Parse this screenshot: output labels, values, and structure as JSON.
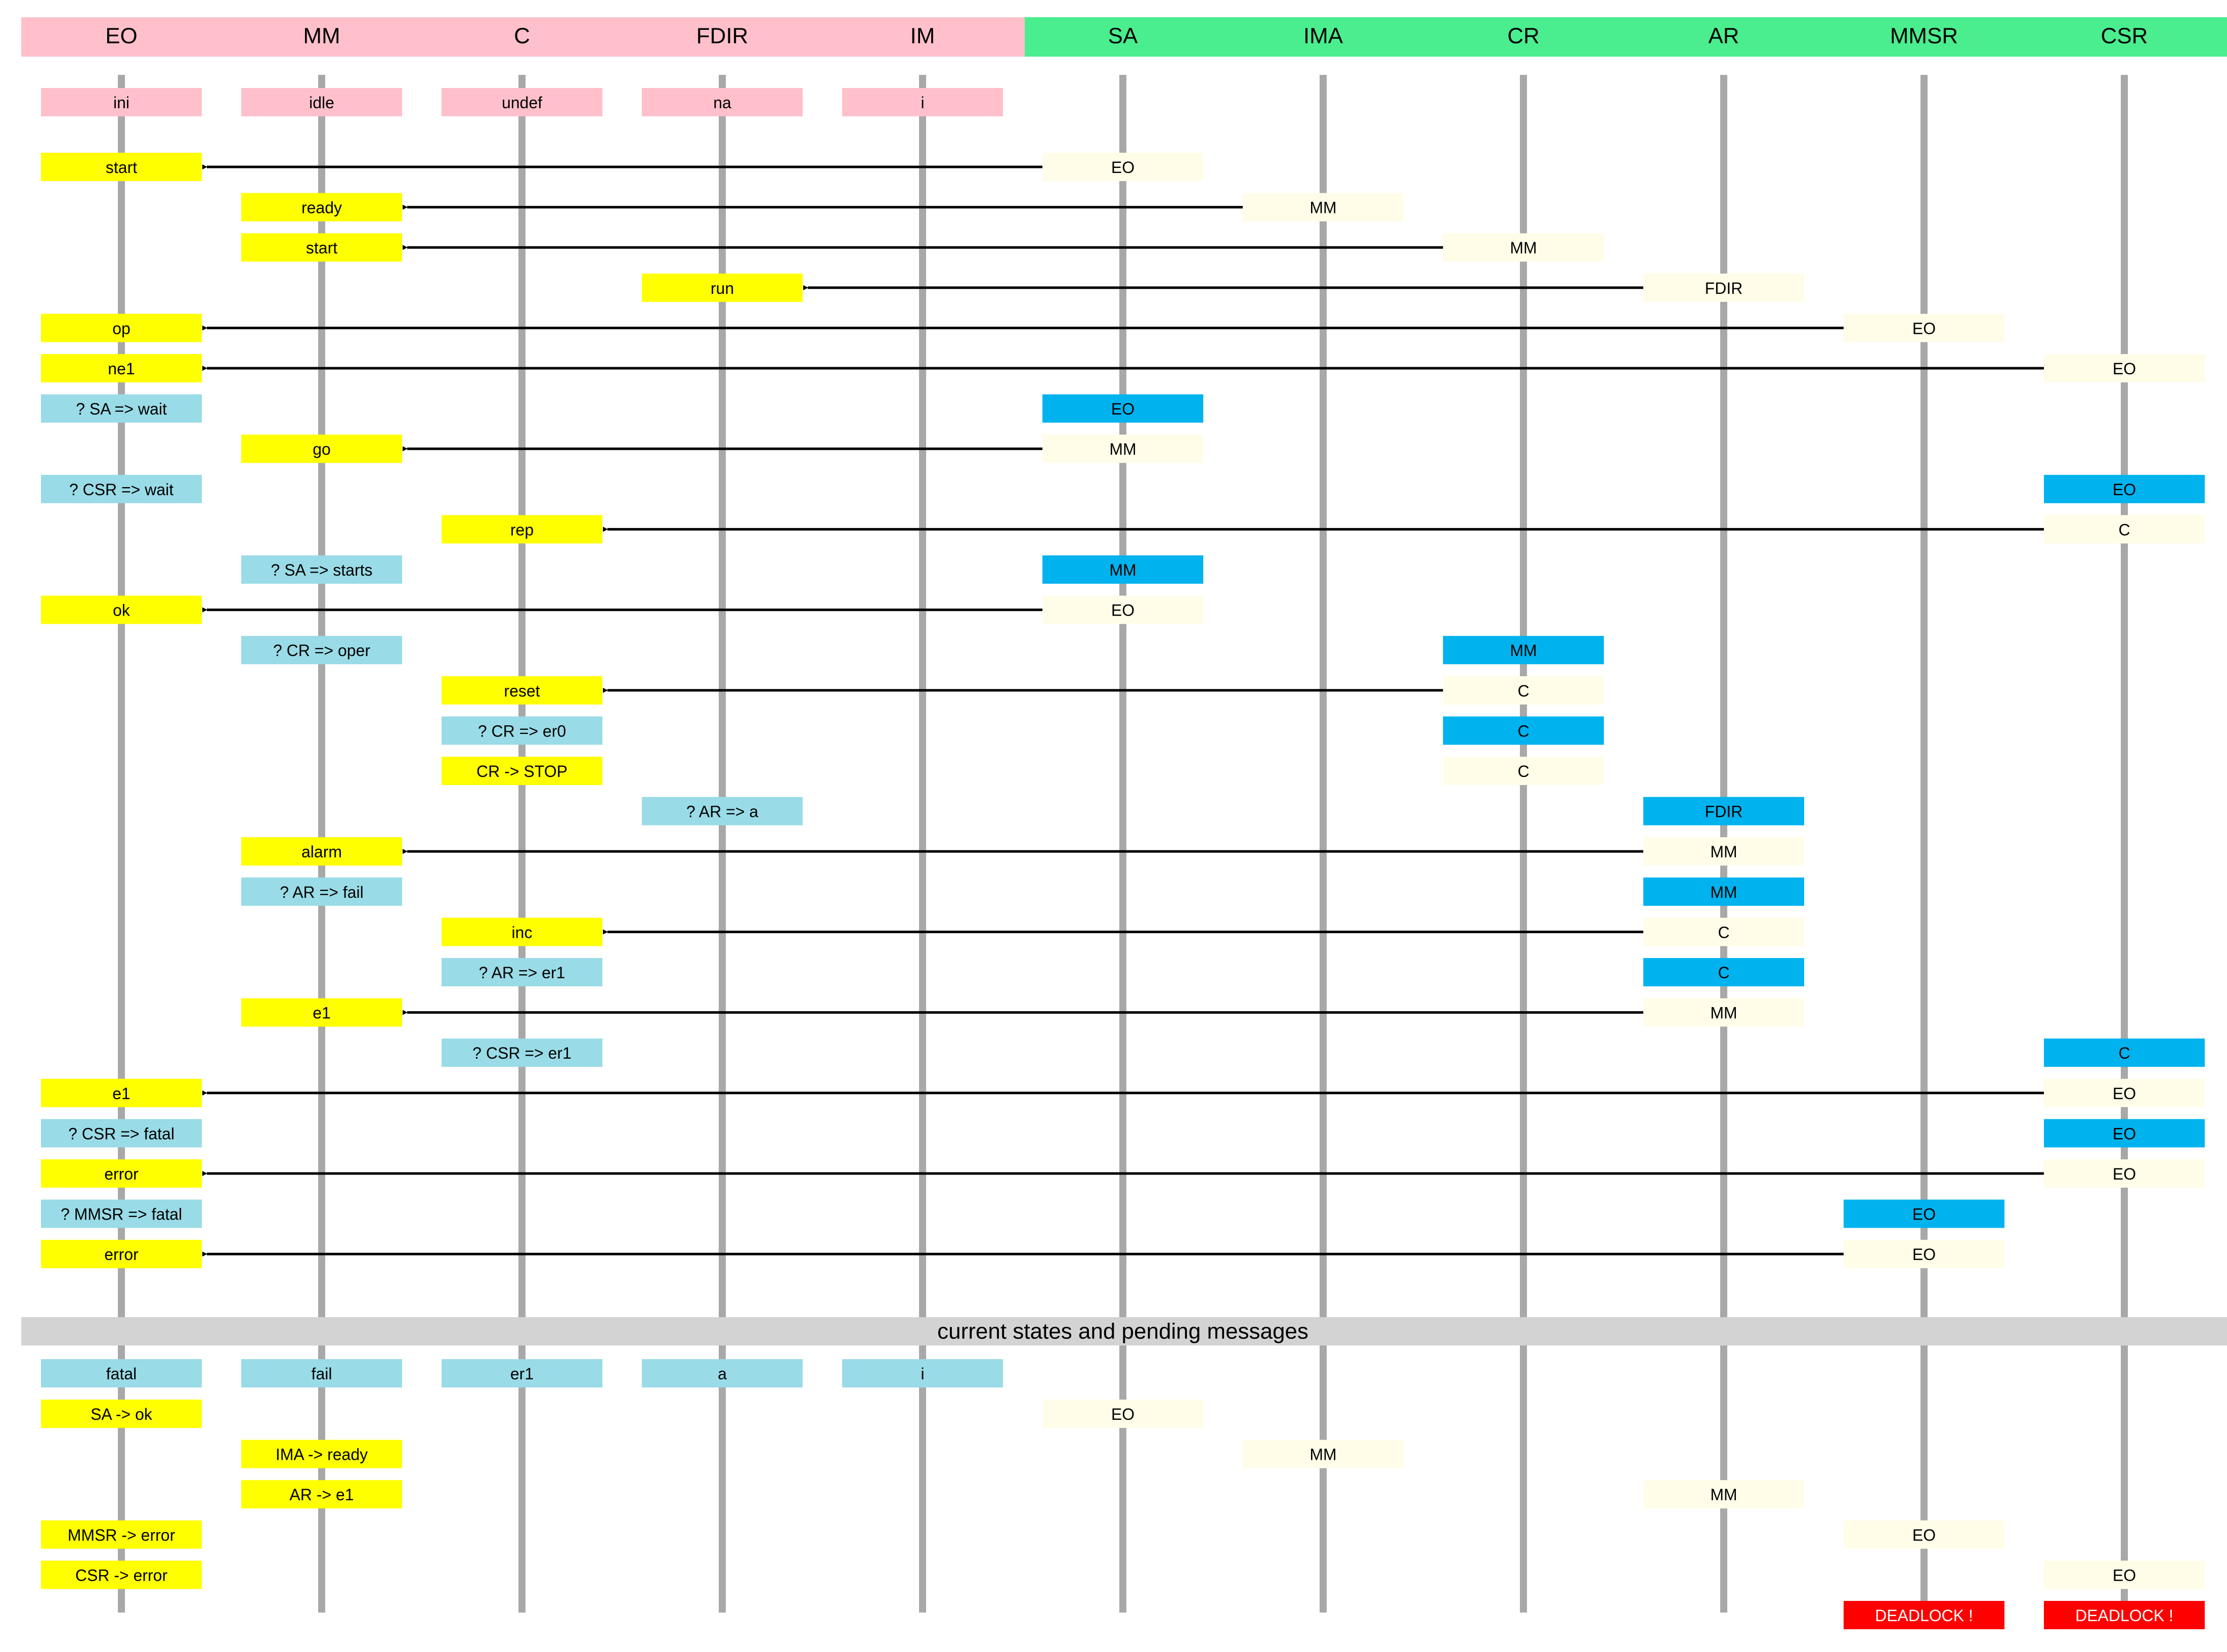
{
  "columns": [
    "EO",
    "MM",
    "C",
    "FDIR",
    "IM",
    "SA",
    "IMA",
    "CR",
    "AR",
    "MMSR",
    "CSR"
  ],
  "colors": {
    "header_left": "#ffc0cb",
    "header_right": "#4aee8e",
    "lifeline": "#a8a8a8",
    "initial_state": "#ffc0cb",
    "action": "#ffff00",
    "query": "#99dbe6",
    "sender_active": "#00b3ee",
    "sender_pending": "#fffde8",
    "deadlock": "#ff0000",
    "separator": "#d3d3d3",
    "arrow": "#000000"
  },
  "initial_states": [
    {
      "col": 0,
      "text": "ini"
    },
    {
      "col": 1,
      "text": "idle"
    },
    {
      "col": 2,
      "text": "undef"
    },
    {
      "col": 3,
      "text": "na"
    },
    {
      "col": 4,
      "text": "i"
    }
  ],
  "steps": [
    {
      "left": {
        "col": 0,
        "text": "start",
        "kind": "action"
      },
      "right": {
        "col": 5,
        "text": "EO",
        "kind": "sender_pending"
      },
      "arrow": true
    },
    {
      "left": {
        "col": 1,
        "text": "ready",
        "kind": "action"
      },
      "right": {
        "col": 6,
        "text": "MM",
        "kind": "sender_pending"
      },
      "arrow": true
    },
    {
      "left": {
        "col": 1,
        "text": "start",
        "kind": "action"
      },
      "right": {
        "col": 7,
        "text": "MM",
        "kind": "sender_pending"
      },
      "arrow": true
    },
    {
      "left": {
        "col": 3,
        "text": "run",
        "kind": "action"
      },
      "right": {
        "col": 8,
        "text": "FDIR",
        "kind": "sender_pending"
      },
      "arrow": true
    },
    {
      "left": {
        "col": 0,
        "text": "op",
        "kind": "action"
      },
      "right": {
        "col": 9,
        "text": "EO",
        "kind": "sender_pending"
      },
      "arrow": true
    },
    {
      "left": {
        "col": 0,
        "text": "ne1",
        "kind": "action"
      },
      "right": {
        "col": 10,
        "text": "EO",
        "kind": "sender_pending"
      },
      "arrow": true
    },
    {
      "left": {
        "col": 0,
        "text": "? SA => wait",
        "kind": "query"
      },
      "right": {
        "col": 5,
        "text": "EO",
        "kind": "sender_active"
      },
      "arrow": false
    },
    {
      "left": {
        "col": 1,
        "text": "go",
        "kind": "action"
      },
      "right": {
        "col": 5,
        "text": "MM",
        "kind": "sender_pending"
      },
      "arrow": true
    },
    {
      "left": {
        "col": 0,
        "text": "? CSR => wait",
        "kind": "query"
      },
      "right": {
        "col": 10,
        "text": "EO",
        "kind": "sender_active"
      },
      "arrow": false
    },
    {
      "left": {
        "col": 2,
        "text": "rep",
        "kind": "action"
      },
      "right": {
        "col": 10,
        "text": "C",
        "kind": "sender_pending"
      },
      "arrow": true
    },
    {
      "left": {
        "col": 1,
        "text": "? SA => starts",
        "kind": "query"
      },
      "right": {
        "col": 5,
        "text": "MM",
        "kind": "sender_active"
      },
      "arrow": false
    },
    {
      "left": {
        "col": 0,
        "text": "ok",
        "kind": "action"
      },
      "right": {
        "col": 5,
        "text": "EO",
        "kind": "sender_pending"
      },
      "arrow": true
    },
    {
      "left": {
        "col": 1,
        "text": "? CR => oper",
        "kind": "query"
      },
      "right": {
        "col": 7,
        "text": "MM",
        "kind": "sender_active"
      },
      "arrow": false
    },
    {
      "left": {
        "col": 2,
        "text": "reset",
        "kind": "action"
      },
      "right": {
        "col": 7,
        "text": "C",
        "kind": "sender_pending"
      },
      "arrow": true
    },
    {
      "left": {
        "col": 2,
        "text": "? CR => er0",
        "kind": "query"
      },
      "right": {
        "col": 7,
        "text": "C",
        "kind": "sender_active"
      },
      "arrow": false
    },
    {
      "left": {
        "col": 2,
        "text": "CR -> STOP",
        "kind": "action"
      },
      "right": {
        "col": 7,
        "text": "C",
        "kind": "sender_pending"
      },
      "arrow": false
    },
    {
      "left": {
        "col": 3,
        "text": "? AR => a",
        "kind": "query"
      },
      "right": {
        "col": 8,
        "text": "FDIR",
        "kind": "sender_active"
      },
      "arrow": false
    },
    {
      "left": {
        "col": 1,
        "text": "alarm",
        "kind": "action"
      },
      "right": {
        "col": 8,
        "text": "MM",
        "kind": "sender_pending"
      },
      "arrow": true
    },
    {
      "left": {
        "col": 1,
        "text": "? AR => fail",
        "kind": "query"
      },
      "right": {
        "col": 8,
        "text": "MM",
        "kind": "sender_active"
      },
      "arrow": false
    },
    {
      "left": {
        "col": 2,
        "text": "inc",
        "kind": "action"
      },
      "right": {
        "col": 8,
        "text": "C",
        "kind": "sender_pending"
      },
      "arrow": true
    },
    {
      "left": {
        "col": 2,
        "text": "? AR => er1",
        "kind": "query"
      },
      "right": {
        "col": 8,
        "text": "C",
        "kind": "sender_active"
      },
      "arrow": false
    },
    {
      "left": {
        "col": 1,
        "text": "e1",
        "kind": "action"
      },
      "right": {
        "col": 8,
        "text": "MM",
        "kind": "sender_pending"
      },
      "arrow": true
    },
    {
      "left": {
        "col": 2,
        "text": "? CSR => er1",
        "kind": "query"
      },
      "right": {
        "col": 10,
        "text": "C",
        "kind": "sender_active"
      },
      "arrow": false
    },
    {
      "left": {
        "col": 0,
        "text": "e1",
        "kind": "action"
      },
      "right": {
        "col": 10,
        "text": "EO",
        "kind": "sender_pending"
      },
      "arrow": true
    },
    {
      "left": {
        "col": 0,
        "text": "? CSR => fatal",
        "kind": "query"
      },
      "right": {
        "col": 10,
        "text": "EO",
        "kind": "sender_active"
      },
      "arrow": false
    },
    {
      "left": {
        "col": 0,
        "text": "error",
        "kind": "action"
      },
      "right": {
        "col": 10,
        "text": "EO",
        "kind": "sender_pending"
      },
      "arrow": true
    },
    {
      "left": {
        "col": 0,
        "text": "? MMSR => fatal",
        "kind": "query"
      },
      "right": {
        "col": 9,
        "text": "EO",
        "kind": "sender_active"
      },
      "arrow": false
    },
    {
      "left": {
        "col": 0,
        "text": "error",
        "kind": "action"
      },
      "right": {
        "col": 9,
        "text": "EO",
        "kind": "sender_pending"
      },
      "arrow": true
    }
  ],
  "separator_label": "current states and pending messages",
  "current_states": [
    {
      "col": 0,
      "text": "fatal"
    },
    {
      "col": 1,
      "text": "fail"
    },
    {
      "col": 2,
      "text": "er1"
    },
    {
      "col": 3,
      "text": "a"
    },
    {
      "col": 4,
      "text": "i"
    }
  ],
  "pending": [
    [
      {
        "col": 0,
        "text": "SA -> ok",
        "kind": "action"
      },
      {
        "col": 5,
        "text": "EO",
        "kind": "sender_pending"
      }
    ],
    [
      {
        "col": 1,
        "text": "IMA -> ready",
        "kind": "action"
      },
      {
        "col": 6,
        "text": "MM",
        "kind": "sender_pending"
      }
    ],
    [
      {
        "col": 1,
        "text": "AR -> e1",
        "kind": "action"
      },
      {
        "col": 8,
        "text": "MM",
        "kind": "sender_pending"
      }
    ],
    [
      {
        "col": 0,
        "text": "MMSR -> error",
        "kind": "action"
      },
      {
        "col": 9,
        "text": "EO",
        "kind": "sender_pending"
      }
    ],
    [
      {
        "col": 0,
        "text": "CSR -> error",
        "kind": "action"
      },
      {
        "col": 10,
        "text": "EO",
        "kind": "sender_pending"
      }
    ],
    [
      {
        "col": 9,
        "text": "DEADLOCK !",
        "kind": "deadlock"
      },
      {
        "col": 10,
        "text": "DEADLOCK !",
        "kind": "deadlock"
      }
    ]
  ]
}
